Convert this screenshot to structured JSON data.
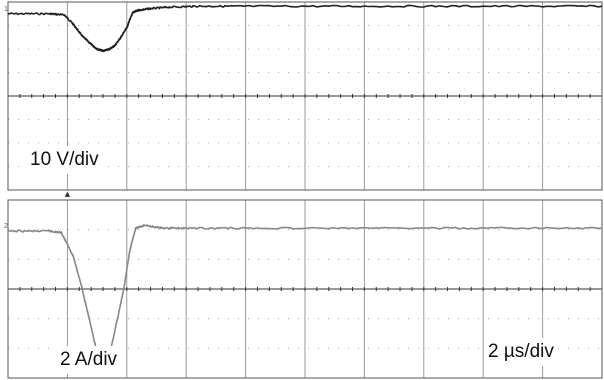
{
  "chart_data": {
    "type": "line",
    "title": "",
    "grid": true,
    "x_divisions": 10,
    "x_range_div": [
      0,
      10
    ],
    "panels": [
      {
        "channel_marker": "1",
        "scale_label": "10 V/div",
        "y_divisions": 8,
        "y_range_div": [
          -4,
          4
        ],
        "trace_color": "#222222",
        "series": [
          {
            "x": [
              0,
              0.7,
              0.95,
              1.1,
              1.25,
              1.4,
              1.5,
              1.6,
              1.7,
              1.8,
              1.9,
              2.0,
              2.05,
              2.1,
              2.2,
              2.4,
              2.7,
              3.2,
              4,
              6,
              8,
              10
            ],
            "y": [
              3.5,
              3.5,
              3.45,
              3.05,
              2.55,
              2.2,
              2.0,
              1.92,
              1.98,
              2.15,
              2.5,
              2.9,
              3.25,
              3.55,
              3.65,
              3.72,
              3.78,
              3.82,
              3.82,
              3.82,
              3.82,
              3.82
            ]
          }
        ]
      },
      {
        "channel_marker": "2",
        "scale_label": "2 A/div",
        "y_divisions": 6,
        "y_range_div": [
          -3,
          3
        ],
        "trace_color": "#888888",
        "series": [
          {
            "x": [
              0,
              0.7,
              0.9,
              1.1,
              1.25,
              1.4,
              1.5,
              1.6,
              1.7,
              1.8,
              1.95,
              2.05,
              2.15,
              2.3,
              2.6,
              3,
              4,
              6,
              8,
              10
            ],
            "y": [
              1.95,
              1.95,
              1.9,
              1.1,
              0,
              -1.3,
              -2.15,
              -2.55,
              -2.3,
              -1.4,
              0,
              1.3,
              2.05,
              2.15,
              2.05,
              2.05,
              2.05,
              2.05,
              2.05,
              2.05
            ]
          }
        ]
      }
    ],
    "trigger_marker": "▲",
    "trigger_x_div": 1,
    "timebase_label": "2 µs/div"
  }
}
